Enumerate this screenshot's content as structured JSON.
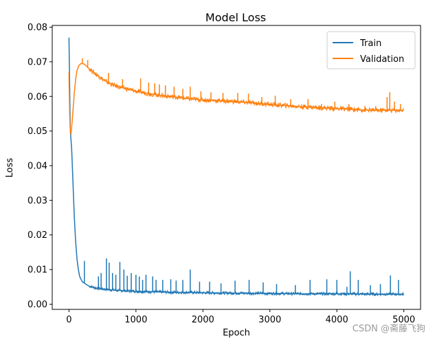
{
  "chart_data": {
    "type": "line",
    "title": "Model Loss",
    "xlabel": "Epoch",
    "ylabel": "Loss",
    "xlim": [
      -250,
      5250
    ],
    "ylim": [
      -0.0015,
      0.0805
    ],
    "xticks": [
      0,
      1000,
      2000,
      3000,
      4000,
      5000
    ],
    "xtick_labels": [
      "0",
      "1000",
      "2000",
      "3000",
      "4000",
      "5000"
    ],
    "yticks": [
      0.0,
      0.01,
      0.02,
      0.03,
      0.04,
      0.05,
      0.06,
      0.07,
      0.08
    ],
    "ytick_labels": [
      "0.00",
      "0.01",
      "0.02",
      "0.03",
      "0.04",
      "0.05",
      "0.06",
      "0.07",
      "0.08"
    ],
    "grid": false,
    "legend_position": "top-right",
    "series": [
      {
        "name": "Train",
        "color": "#1f77b4",
        "x": [
          0,
          20,
          40,
          60,
          80,
          100,
          120,
          140,
          160,
          180,
          200,
          250,
          300,
          400,
          500,
          600,
          700,
          800,
          900,
          1000,
          1200,
          1400,
          1600,
          1800,
          2000,
          2500,
          3000,
          3500,
          4000,
          4500,
          5000
        ],
        "values": [
          0.077,
          0.05,
          0.045,
          0.035,
          0.025,
          0.018,
          0.013,
          0.01,
          0.008,
          0.0072,
          0.0065,
          0.0058,
          0.0052,
          0.0047,
          0.0044,
          0.0042,
          0.004,
          0.0039,
          0.0038,
          0.0037,
          0.0036,
          0.0035,
          0.0034,
          0.0034,
          0.0033,
          0.0032,
          0.0031,
          0.003,
          0.003,
          0.0029,
          0.0029
        ],
        "spikes": [
          {
            "x": 230,
            "y": 0.0125
          },
          {
            "x": 440,
            "y": 0.008
          },
          {
            "x": 480,
            "y": 0.009
          },
          {
            "x": 560,
            "y": 0.0132
          },
          {
            "x": 600,
            "y": 0.012
          },
          {
            "x": 650,
            "y": 0.009
          },
          {
            "x": 700,
            "y": 0.0085
          },
          {
            "x": 760,
            "y": 0.0122
          },
          {
            "x": 820,
            "y": 0.01
          },
          {
            "x": 870,
            "y": 0.0082
          },
          {
            "x": 930,
            "y": 0.009
          },
          {
            "x": 1000,
            "y": 0.0085
          },
          {
            "x": 1050,
            "y": 0.008
          },
          {
            "x": 1100,
            "y": 0.007
          },
          {
            "x": 1150,
            "y": 0.0085
          },
          {
            "x": 1250,
            "y": 0.008
          },
          {
            "x": 1300,
            "y": 0.007
          },
          {
            "x": 1400,
            "y": 0.007
          },
          {
            "x": 1520,
            "y": 0.0072
          },
          {
            "x": 1600,
            "y": 0.0068
          },
          {
            "x": 1700,
            "y": 0.007
          },
          {
            "x": 1810,
            "y": 0.01
          },
          {
            "x": 1950,
            "y": 0.0065
          },
          {
            "x": 2100,
            "y": 0.0065
          },
          {
            "x": 2270,
            "y": 0.006
          },
          {
            "x": 2480,
            "y": 0.0068
          },
          {
            "x": 2690,
            "y": 0.007
          },
          {
            "x": 2900,
            "y": 0.0063
          },
          {
            "x": 3100,
            "y": 0.0058
          },
          {
            "x": 3380,
            "y": 0.0055
          },
          {
            "x": 3600,
            "y": 0.007
          },
          {
            "x": 3850,
            "y": 0.0072
          },
          {
            "x": 4000,
            "y": 0.007
          },
          {
            "x": 4150,
            "y": 0.005
          },
          {
            "x": 4200,
            "y": 0.0095
          },
          {
            "x": 4320,
            "y": 0.007
          },
          {
            "x": 4500,
            "y": 0.0055
          },
          {
            "x": 4650,
            "y": 0.0058
          },
          {
            "x": 4800,
            "y": 0.0083
          },
          {
            "x": 4920,
            "y": 0.007
          }
        ]
      },
      {
        "name": "Validation",
        "color": "#ff7f0e",
        "x": [
          0,
          10,
          20,
          30,
          40,
          60,
          80,
          100,
          120,
          150,
          180,
          200,
          230,
          260,
          300,
          400,
          500,
          600,
          700,
          800,
          900,
          1000,
          1200,
          1400,
          1600,
          1800,
          2000,
          2500,
          3000,
          3500,
          4000,
          4500,
          5000
        ],
        "values": [
          0.067,
          0.055,
          0.05,
          0.049,
          0.051,
          0.056,
          0.061,
          0.065,
          0.0675,
          0.069,
          0.0695,
          0.0695,
          0.0693,
          0.0688,
          0.068,
          0.0665,
          0.065,
          0.0638,
          0.063,
          0.0625,
          0.062,
          0.0615,
          0.0608,
          0.0602,
          0.0598,
          0.0593,
          0.059,
          0.0585,
          0.0577,
          0.057,
          0.0565,
          0.056,
          0.056
        ],
        "spikes": [
          {
            "x": 200,
            "y": 0.071
          },
          {
            "x": 280,
            "y": 0.0705
          },
          {
            "x": 590,
            "y": 0.0668
          },
          {
            "x": 800,
            "y": 0.065
          },
          {
            "x": 1070,
            "y": 0.0652
          },
          {
            "x": 1190,
            "y": 0.064
          },
          {
            "x": 1280,
            "y": 0.0638
          },
          {
            "x": 1350,
            "y": 0.0635
          },
          {
            "x": 1440,
            "y": 0.0632
          },
          {
            "x": 1570,
            "y": 0.0628
          },
          {
            "x": 1700,
            "y": 0.0622
          },
          {
            "x": 1810,
            "y": 0.0628
          },
          {
            "x": 1970,
            "y": 0.0615
          },
          {
            "x": 2120,
            "y": 0.0612
          },
          {
            "x": 2300,
            "y": 0.061
          },
          {
            "x": 2520,
            "y": 0.061
          },
          {
            "x": 2680,
            "y": 0.0608
          },
          {
            "x": 2880,
            "y": 0.0598
          },
          {
            "x": 3080,
            "y": 0.0602
          },
          {
            "x": 3310,
            "y": 0.0592
          },
          {
            "x": 3570,
            "y": 0.0592
          },
          {
            "x": 3770,
            "y": 0.0578
          },
          {
            "x": 3970,
            "y": 0.0585
          },
          {
            "x": 4180,
            "y": 0.0578
          },
          {
            "x": 4420,
            "y": 0.0572
          },
          {
            "x": 4580,
            "y": 0.0572
          },
          {
            "x": 4750,
            "y": 0.0598
          },
          {
            "x": 4790,
            "y": 0.0612
          },
          {
            "x": 4860,
            "y": 0.0585
          },
          {
            "x": 4950,
            "y": 0.0578
          }
        ]
      }
    ]
  },
  "watermark": "CSDN @斋藤飞狗"
}
